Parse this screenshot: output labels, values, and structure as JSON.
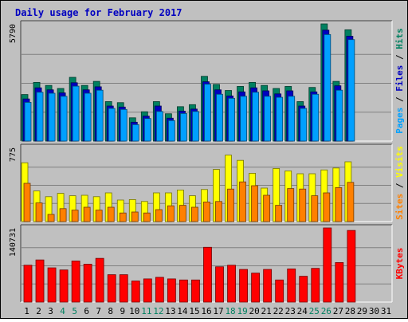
{
  "chart_data": {
    "type": "bar",
    "title": "Daily usage for February 2017",
    "x": [
      "1",
      "2",
      "3",
      "4",
      "5",
      "6",
      "7",
      "8",
      "9",
      "10",
      "11",
      "12",
      "13",
      "14",
      "15",
      "16",
      "17",
      "18",
      "19",
      "20",
      "21",
      "22",
      "23",
      "24",
      "25",
      "26",
      "27",
      "28",
      "29",
      "30",
      "31"
    ],
    "weekend_days": [
      4,
      5,
      11,
      12,
      18,
      19,
      25,
      26
    ],
    "panels": [
      {
        "id": "hits-panel",
        "max_label": "5790",
        "ylim": [
          0,
          5790
        ],
        "label_parts": [
          {
            "text": "Pages",
            "color": "#00a0ff"
          },
          {
            "text": " / ",
            "color": "#000000"
          },
          {
            "text": "Files",
            "color": "#0000c0"
          },
          {
            "text": " / ",
            "color": "#000000"
          },
          {
            "text": "Hits",
            "color": "#008060"
          }
        ],
        "series": [
          {
            "name": "Hits",
            "color": "#008060",
            "values": [
              2300,
              2900,
              2750,
              2600,
              3150,
              2750,
              2950,
              1950,
              1900,
              1150,
              1450,
              1950,
              1350,
              1700,
              1800,
              3200,
              2800,
              2500,
              2700,
              2900,
              2750,
              2600,
              2700,
              1950,
              2650,
              5790,
              2950,
              5500,
              null,
              null,
              null
            ]
          },
          {
            "name": "Files",
            "color": "#0000c0",
            "values": [
              2200,
              2750,
              2650,
              2500,
              3000,
              2650,
              2800,
              1850,
              1800,
              1050,
              1350,
              1850,
              1250,
              1600,
              1700,
              3050,
              2650,
              2350,
              2550,
              2750,
              2600,
              2450,
              2600,
              1850,
              2550,
              5600,
              2850,
              5300,
              null,
              null,
              null
            ]
          },
          {
            "name": "Pages",
            "color": "#00a0ff",
            "values": [
              2150,
              2650,
              2600,
              2450,
              2950,
              2600,
              2750,
              1850,
              1800,
              1050,
              1350,
              1700,
              1250,
              1600,
              1700,
              3050,
              2550,
              2350,
              2450,
              2650,
              2450,
              2400,
              2450,
              1850,
              2550,
              5500,
              2750,
              5250,
              null,
              null,
              null
            ]
          }
        ]
      },
      {
        "id": "visits-panel",
        "max_label": "775",
        "ylim": [
          0,
          775
        ],
        "label_parts": [
          {
            "text": "Sites",
            "color": "#ff8000"
          },
          {
            "text": " / ",
            "color": "#000000"
          },
          {
            "text": "Visits",
            "color": "#ffff00"
          }
        ],
        "series": [
          {
            "name": "Visits",
            "color": "#ffff00",
            "values": [
              615,
              320,
              260,
              295,
              270,
              275,
              260,
              300,
              225,
              230,
              210,
              300,
              300,
              330,
              270,
              335,
              545,
              695,
              640,
              505,
              350,
              555,
              530,
              500,
              500,
              540,
              560,
              625,
              null,
              null,
              null
            ]
          },
          {
            "name": "Sites",
            "color": "#ff8000",
            "values": [
              425,
              220,
              100,
              160,
              145,
              175,
              145,
              175,
              115,
              125,
              115,
              150,
              190,
              195,
              175,
              230,
              235,
              365,
              440,
              400,
              300,
              195,
              370,
              365,
              295,
              325,
              380,
              435,
              null,
              null,
              null
            ]
          }
        ]
      },
      {
        "id": "kbytes-panel",
        "max_label": "140731",
        "ylim": [
          0,
          140731
        ],
        "label_parts": [
          {
            "text": "KBytes",
            "color": "#ff0000"
          }
        ],
        "series": [
          {
            "name": "KBytes",
            "color": "#ff0000",
            "values": [
              70000,
              80000,
              65000,
              61000,
              78000,
              72000,
              83000,
              52000,
              52000,
              40000,
              44000,
              47000,
              44000,
              42000,
              42000,
              104000,
              67000,
              70000,
              62000,
              55000,
              62000,
              42000,
              63000,
              49000,
              64000,
              140731,
              75000,
              136000,
              null,
              null,
              null
            ]
          }
        ]
      }
    ]
  }
}
